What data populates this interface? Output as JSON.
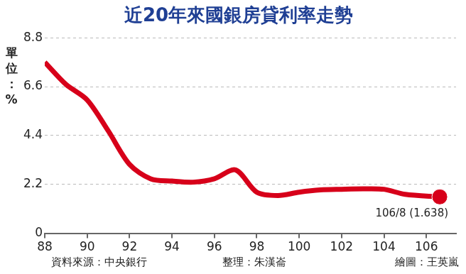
{
  "chart_data": {
    "type": "line",
    "title": "近20年來國銀房貸利率走勢",
    "ylabel": "單位：%",
    "notes": [
      "資料來源：中央銀行",
      "整理：朱漢崙",
      "繪圖：王英嵐"
    ],
    "x": [
      88,
      89,
      90,
      91,
      92,
      93,
      94,
      95,
      96,
      97,
      98,
      99,
      100,
      101,
      102,
      103,
      104,
      105,
      106.63
    ],
    "values": [
      7.7,
      6.7,
      6.0,
      4.6,
      3.1,
      2.45,
      2.35,
      2.3,
      2.45,
      2.85,
      1.85,
      1.7,
      1.85,
      1.95,
      1.98,
      2.0,
      1.98,
      1.75,
      1.638
    ],
    "value_labels": [
      null,
      null,
      null,
      null,
      null,
      null,
      null,
      null,
      null,
      null,
      null,
      null,
      null,
      null,
      null,
      null,
      null,
      null,
      "106/8 (1.638)"
    ],
    "color": "#d7001a",
    "xlim": [
      88,
      107.4
    ],
    "xticks": [
      88,
      90,
      92,
      94,
      96,
      98,
      100,
      102,
      104,
      106
    ],
    "ylim": [
      0,
      8.8
    ],
    "yticks": [
      0,
      2.2,
      4.4,
      6.6,
      8.8
    ],
    "grid": true
  }
}
